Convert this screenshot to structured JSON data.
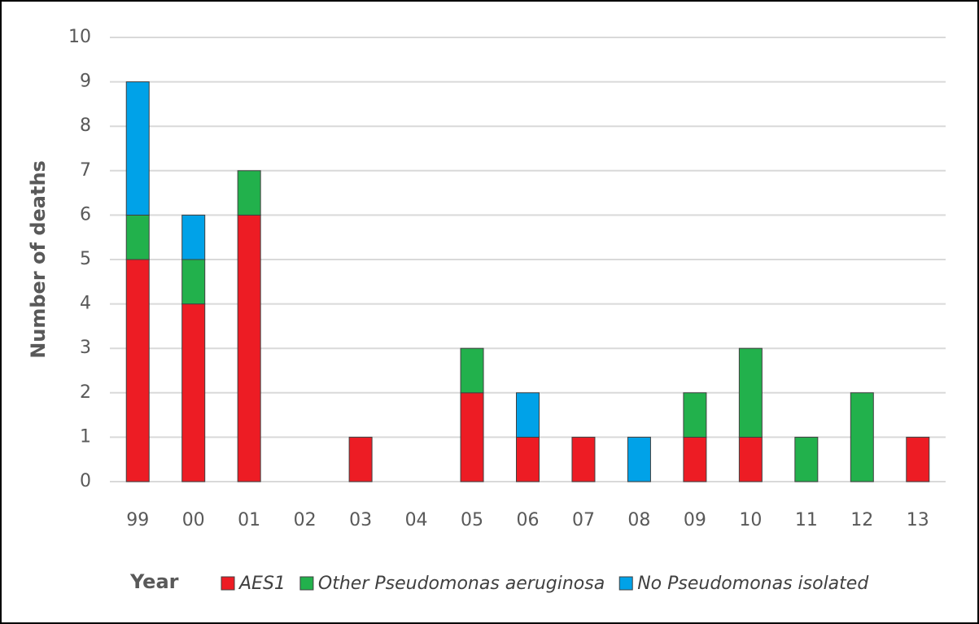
{
  "chart_data": {
    "type": "stacked_bar",
    "x_label": "Year",
    "y_label": "Number of deaths",
    "categories": [
      "99",
      "00",
      "01",
      "02",
      "03",
      "04",
      "05",
      "06",
      "07",
      "08",
      "09",
      "10",
      "11",
      "12",
      "13"
    ],
    "series": [
      {
        "name": "AES1",
        "color": "#ed1c24",
        "values": [
          5,
          4,
          6,
          0,
          1,
          0,
          2,
          1,
          1,
          0,
          1,
          1,
          0,
          0,
          1
        ]
      },
      {
        "name": "Other Pseudomonas aeruginosa",
        "color": "#22b14c",
        "values": [
          1,
          1,
          1,
          0,
          0,
          0,
          1,
          0,
          0,
          0,
          1,
          2,
          1,
          2,
          0
        ]
      },
      {
        "name": "No Pseudomonas isolated",
        "color": "#00a2e8",
        "values": [
          3,
          1,
          0,
          0,
          0,
          0,
          0,
          1,
          0,
          1,
          0,
          0,
          0,
          0,
          0
        ]
      }
    ],
    "ylim": [
      0,
      10
    ],
    "yticks": [
      0,
      1,
      2,
      3,
      4,
      5,
      6,
      7,
      8,
      9,
      10
    ],
    "grid": true
  }
}
